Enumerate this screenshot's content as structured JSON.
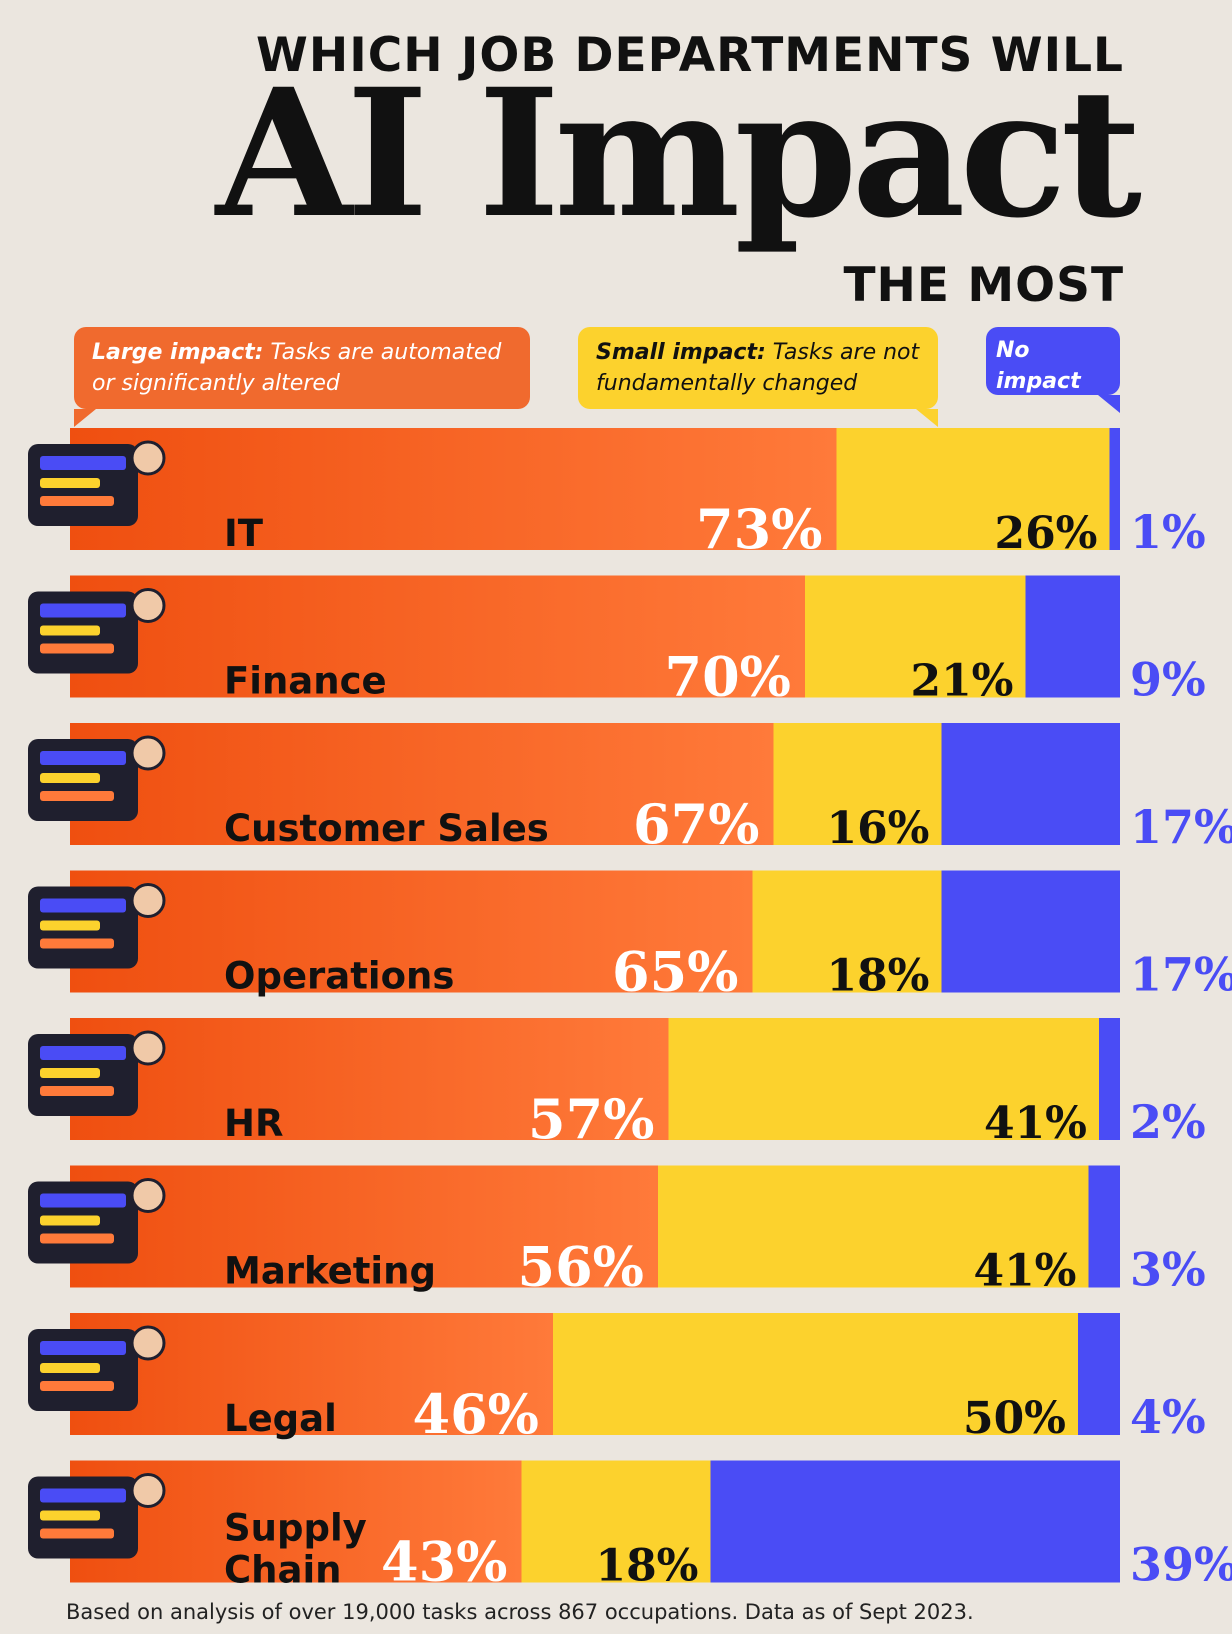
{
  "title": {
    "line1": "WHICH JOB DEPARTMENTS WILL",
    "line2": "AI Impact",
    "line3": "THE MOST"
  },
  "legend": {
    "large_title": "Large impact:",
    "large_text": " Tasks are automated or significantly altered",
    "small_title": "Small impact:",
    "small_text": " Tasks are not fundamentally changed",
    "none_title": "No impact"
  },
  "colors": {
    "large": "#f4601f",
    "small": "#fcd22d",
    "none": "#4a4cf5",
    "background": "#ebe6df"
  },
  "chart_data": {
    "type": "bar",
    "orientation": "horizontal",
    "stacked": true,
    "percent_stacked": true,
    "categories": [
      "IT",
      "Finance",
      "Customer Sales",
      "Operations",
      "HR",
      "Marketing",
      "Legal",
      "Supply Chain"
    ],
    "series": [
      {
        "name": "Large impact",
        "values": [
          73,
          70,
          67,
          65,
          57,
          56,
          46,
          43
        ]
      },
      {
        "name": "Small impact",
        "values": [
          26,
          21,
          16,
          18,
          41,
          41,
          50,
          18
        ]
      },
      {
        "name": "No impact",
        "values": [
          1,
          9,
          17,
          17,
          2,
          3,
          4,
          39
        ]
      }
    ],
    "xlim": [
      0,
      100
    ],
    "icons": [
      "it-worker-icon",
      "finance-calculator-icon",
      "sales-box-icon",
      "operations-calendar-icon",
      "hr-people-icon",
      "marketing-web-icon",
      "legal-scales-icon",
      "supply-chain-map-icon"
    ]
  },
  "footnote": "Based on analysis of over 19,000 tasks across 867 occupations. Data as of Sept 2023."
}
